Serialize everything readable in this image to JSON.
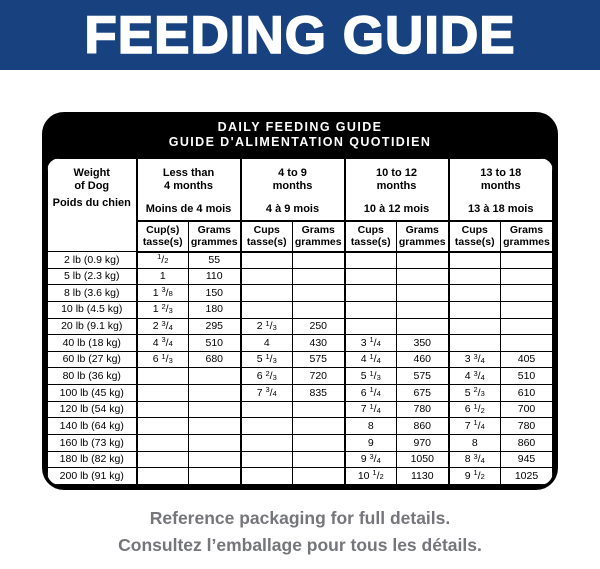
{
  "header": {
    "title": "FEEDING GUIDE",
    "bg_color": "#18427f",
    "text_color": "#ffffff"
  },
  "table": {
    "title_en": "DAILY FEEDING GUIDE",
    "title_fr": "GUIDE D'ALIMENTATION QUOTIDIEN",
    "weight_header_en": "Weight\nof Dog",
    "weight_header_fr": "Poids du chien",
    "age_groups": [
      {
        "en": "Less than\n4 months",
        "fr": "Moins de 4 mois",
        "cups_label": "Cup(s)\ntasse(s)",
        "grams_label": "Grams\ngrammes"
      },
      {
        "en": "4 to 9\nmonths",
        "fr": "4 à 9 mois",
        "cups_label": "Cups\ntasse(s)",
        "grams_label": "Grams\ngrammes"
      },
      {
        "en": "10 to 12\nmonths",
        "fr": "10 à 12 mois",
        "cups_label": "Cups\ntasse(s)",
        "grams_label": "Grams\ngrammes"
      },
      {
        "en": "13 to 18\nmonths",
        "fr": "13 à 18 mois",
        "cups_label": "Cups\ntasse(s)",
        "grams_label": "Grams\ngrammes"
      }
    ],
    "rows": [
      {
        "weight": "2 lb (0.9 kg)",
        "values": [
          "1/2",
          "55",
          "",
          "",
          "",
          "",
          "",
          ""
        ]
      },
      {
        "weight": "5 lb (2.3 kg)",
        "values": [
          "1",
          "110",
          "",
          "",
          "",
          "",
          "",
          ""
        ]
      },
      {
        "weight": "8 lb (3.6 kg)",
        "values": [
          "1 3/8",
          "150",
          "",
          "",
          "",
          "",
          "",
          ""
        ]
      },
      {
        "weight": "10 lb (4.5 kg)",
        "values": [
          "1 2/3",
          "180",
          "",
          "",
          "",
          "",
          "",
          ""
        ]
      },
      {
        "weight": "20 lb (9.1 kg)",
        "values": [
          "2 3/4",
          "295",
          "2 1/3",
          "250",
          "",
          "",
          "",
          ""
        ]
      },
      {
        "weight": "40 lb (18 kg)",
        "values": [
          "4 3/4",
          "510",
          "4",
          "430",
          "3 1/4",
          "350",
          "",
          ""
        ]
      },
      {
        "weight": "60 lb (27 kg)",
        "values": [
          "6 1/3",
          "680",
          "5 1/3",
          "575",
          "4 1/4",
          "460",
          "3 3/4",
          "405"
        ]
      },
      {
        "weight": "80 lb (36 kg)",
        "values": [
          "",
          "",
          "6 2/3",
          "720",
          "5 1/3",
          "575",
          "4 3/4",
          "510"
        ]
      },
      {
        "weight": "100 lb (45 kg)",
        "values": [
          "",
          "",
          "7 3/4",
          "835",
          "6 1/4",
          "675",
          "5 2/3",
          "610"
        ]
      },
      {
        "weight": "120 lb (54 kg)",
        "values": [
          "",
          "",
          "",
          "",
          "7 1/4",
          "780",
          "6 1/2",
          "700"
        ]
      },
      {
        "weight": "140 lb (64 kg)",
        "values": [
          "",
          "",
          "",
          "",
          "8",
          "860",
          "7 1/4",
          "780"
        ]
      },
      {
        "weight": "160 lb (73 kg)",
        "values": [
          "",
          "",
          "",
          "",
          "9",
          "970",
          "8",
          "860"
        ]
      },
      {
        "weight": "180 lb (82 kg)",
        "values": [
          "",
          "",
          "",
          "",
          "9 3/4",
          "1050",
          "8 3/4",
          "945"
        ]
      },
      {
        "weight": "200 lb (91 kg)",
        "values": [
          "",
          "",
          "",
          "",
          "10 1/2",
          "1130",
          "9 1/2",
          "1025"
        ]
      }
    ]
  },
  "footer": {
    "line_en": "Reference packaging for full details.",
    "line_fr": "Consultez l’emballage pour tous les détails.",
    "text_color": "#75767a"
  }
}
